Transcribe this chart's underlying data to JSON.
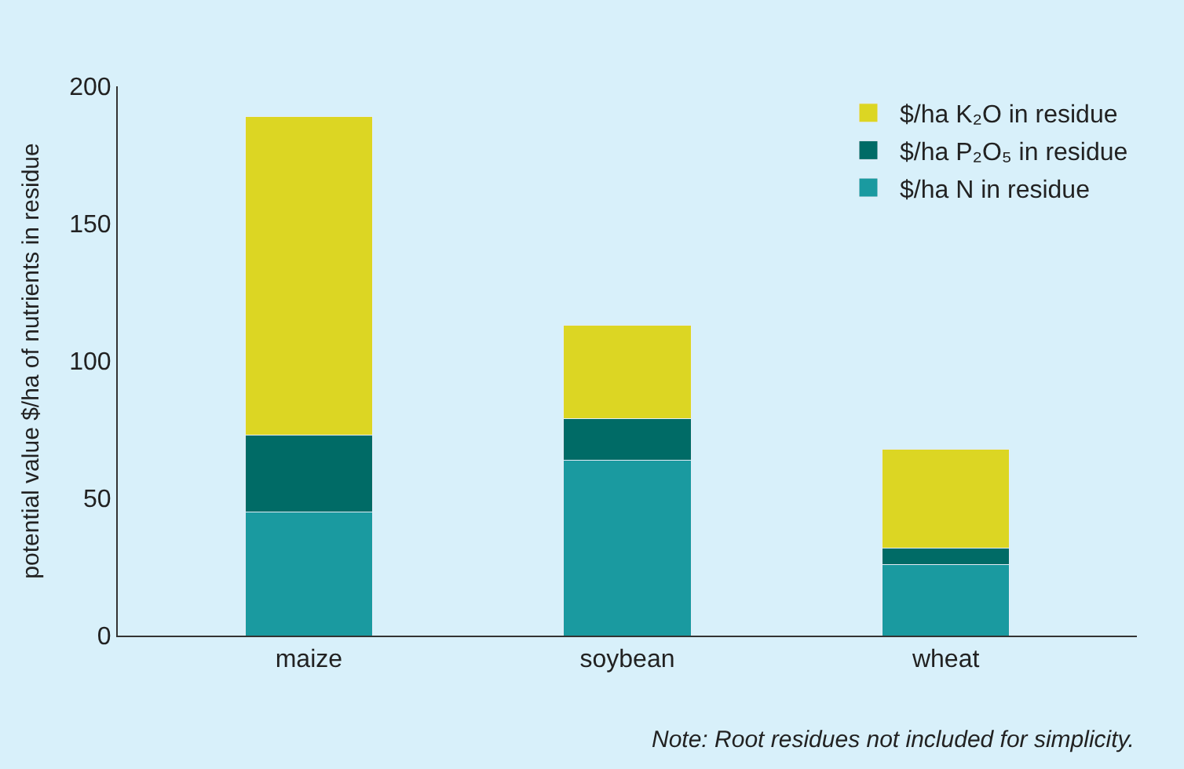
{
  "chart_data": {
    "type": "bar",
    "stacked": true,
    "ylabel": "potential value $/ha of nutrients in residue",
    "categories": [
      "maize",
      "soybean",
      "wheat"
    ],
    "series": [
      {
        "name": "$/ha N in residue",
        "color": "#1a9aa0",
        "values": [
          45,
          64,
          26
        ]
      },
      {
        "name": "$/ha P₂O₅ in residue",
        "color": "#006b66",
        "values": [
          28,
          15,
          6
        ]
      },
      {
        "name": "$/ha K₂O in residue",
        "color": "#dcd623",
        "values": [
          116,
          34,
          36
        ]
      }
    ],
    "ylim": [
      0,
      200
    ],
    "yticks": [
      0,
      50,
      100,
      150,
      200
    ],
    "grid": false,
    "legend": "top right",
    "annotations": [
      "Note: Root residues not included for simplicity."
    ]
  }
}
